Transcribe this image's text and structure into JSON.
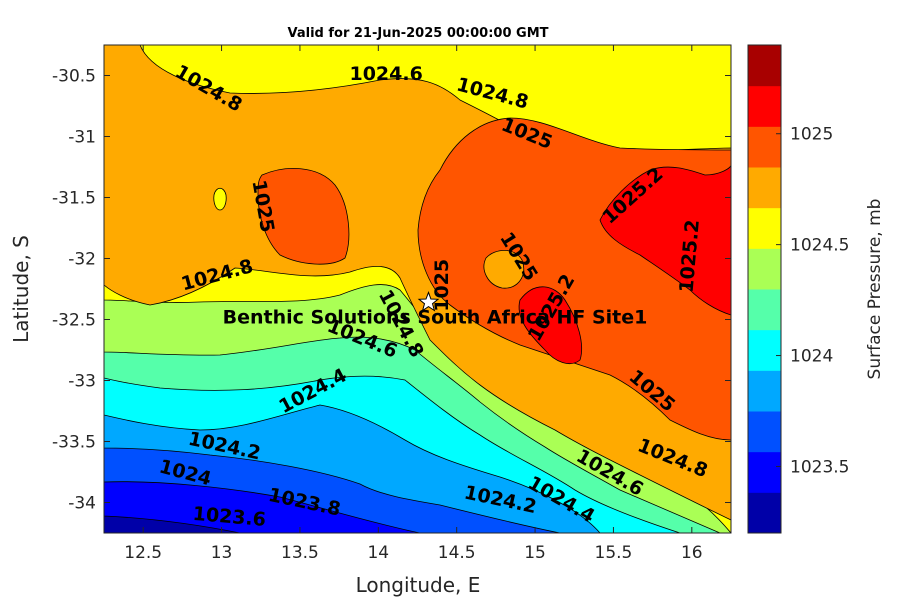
{
  "chart_data": {
    "type": "contour",
    "title": "Valid for 21-Jun-2025 00:00:00 GMT",
    "xlabel": "Longitude, E",
    "ylabel": "Latitude, S",
    "colorbar_label": "Surface Pressure, mb",
    "xlim": [
      12.25,
      16.25
    ],
    "ylim": [
      -34.25,
      -30.25
    ],
    "xticks": [
      "12.5",
      "13",
      "13.5",
      "14",
      "14.5",
      "15",
      "15.5",
      "16"
    ],
    "yticks": [
      "-30.5",
      "-31",
      "-31.5",
      "-32",
      "-32.5",
      "-33",
      "-33.5",
      "-34"
    ],
    "colorbar": {
      "range": [
        1023.2,
        1025.4
      ],
      "levels": [
        1023.2,
        1023.3,
        1023.4,
        1023.5,
        1023.6,
        1023.7,
        1023.8,
        1023.9,
        1024.0,
        1024.1,
        1024.2,
        1024.3,
        1024.4,
        1024.5,
        1024.6,
        1024.7,
        1024.8,
        1024.9,
        1025.0,
        1025.1,
        1025.2,
        1025.3,
        1025.4
      ],
      "colors": [
        "#0000a8",
        "#0000ff",
        "#0050ff",
        "#00a8ff",
        "#00ffff",
        "#55ffaa",
        "#aaff55",
        "#ffff00",
        "#ffaa00",
        "#ff5500",
        "#ff0000",
        "#a80000"
      ],
      "ticks": [
        "1023.5",
        "1024",
        "1024.5",
        "1025"
      ]
    },
    "contour_labels": [
      {
        "text": "1024.6",
        "x": 14.05,
        "y": -30.48,
        "angle": 0
      },
      {
        "text": "1024.8",
        "x": 12.92,
        "y": -30.6,
        "angle": 30
      },
      {
        "text": "1024.8",
        "x": 14.73,
        "y": -30.64,
        "angle": 15
      },
      {
        "text": "1025",
        "x": 14.95,
        "y": -30.97,
        "angle": 22
      },
      {
        "text": "1025",
        "x": 13.27,
        "y": -31.57,
        "angle": 80
      },
      {
        "text": "1025.2",
        "x": 15.62,
        "y": -31.48,
        "angle": -42
      },
      {
        "text": "1025.2",
        "x": 15.98,
        "y": -31.98,
        "angle": -85
      },
      {
        "text": "1025",
        "x": 14.9,
        "y": -31.98,
        "angle": 58
      },
      {
        "text": "1024.8",
        "x": 12.97,
        "y": -32.13,
        "angle": -15
      },
      {
        "text": "1025",
        "x": 14.4,
        "y": -32.22,
        "angle": -90
      },
      {
        "text": "1025.2",
        "x": 15.1,
        "y": -32.4,
        "angle": -60
      },
      {
        "text": "1024.8",
        "x": 14.15,
        "y": -32.53,
        "angle": 62
      },
      {
        "text": "1024.6",
        "x": 13.9,
        "y": -32.65,
        "angle": 22
      },
      {
        "text": "1024.4",
        "x": 13.58,
        "y": -33.08,
        "angle": -28
      },
      {
        "text": "1025",
        "x": 15.75,
        "y": -33.08,
        "angle": 40
      },
      {
        "text": "1024.2",
        "x": 13.02,
        "y": -33.53,
        "angle": 12
      },
      {
        "text": "1024",
        "x": 12.77,
        "y": -33.75,
        "angle": 15
      },
      {
        "text": "1024.8",
        "x": 15.88,
        "y": -33.63,
        "angle": 22
      },
      {
        "text": "1024.6",
        "x": 15.48,
        "y": -33.75,
        "angle": 30
      },
      {
        "text": "1024.4",
        "x": 15.17,
        "y": -33.97,
        "angle": 30
      },
      {
        "text": "1024.2",
        "x": 14.78,
        "y": -33.97,
        "angle": 12
      },
      {
        "text": "1023.8",
        "x": 13.53,
        "y": -33.99,
        "angle": 12
      },
      {
        "text": "1023.6",
        "x": 13.05,
        "y": -34.11,
        "angle": 5
      }
    ],
    "site": {
      "label": "Benthic Solutions South Africa HF Site1",
      "x": 14.32,
      "y": -32.36,
      "marker": "star"
    }
  }
}
